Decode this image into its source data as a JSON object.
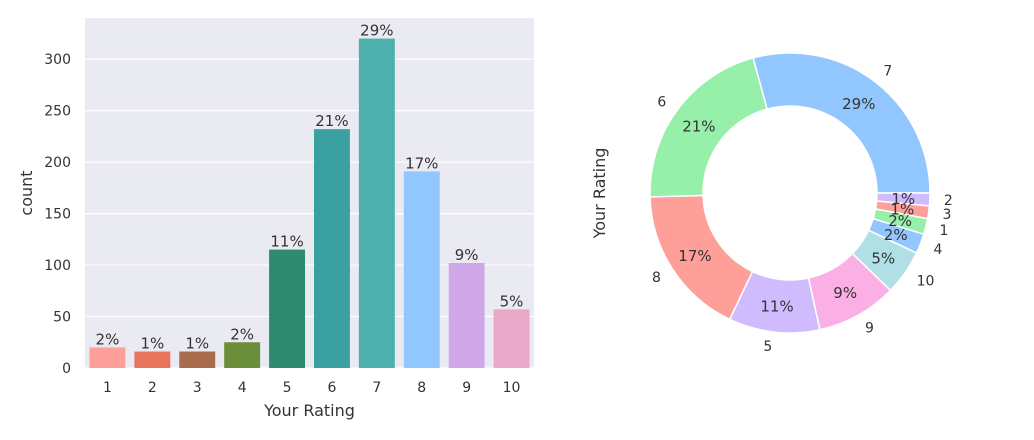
{
  "chart_data": [
    {
      "type": "bar",
      "xlabel": "Your Rating",
      "ylabel": "count",
      "ylim": [
        0,
        340
      ],
      "yticks": [
        0,
        50,
        100,
        150,
        200,
        250,
        300
      ],
      "grid": true,
      "categories": [
        "1",
        "2",
        "3",
        "4",
        "5",
        "6",
        "7",
        "8",
        "9",
        "10"
      ],
      "values": [
        20,
        16,
        16,
        25,
        115,
        232,
        320,
        191,
        102,
        57
      ],
      "data_labels": [
        "2%",
        "1%",
        "1%",
        "2%",
        "11%",
        "21%",
        "29%",
        "17%",
        "9%",
        "5%"
      ],
      "colors": [
        "#ff9f9b",
        "#e8745c",
        "#a86b4c",
        "#6b8e3a",
        "#2e8b6e",
        "#3aa0a0",
        "#4db0ac",
        "#92c6ff",
        "#d0a8e8",
        "#e8a8c8"
      ]
    },
    {
      "type": "pie",
      "donut": true,
      "ylabel": "Your Rating",
      "slices": [
        {
          "label": "7",
          "value": 320,
          "pct_label": "29%",
          "color": "#92c6ff"
        },
        {
          "label": "6",
          "value": 232,
          "pct_label": "21%",
          "color": "#97f0aa"
        },
        {
          "label": "8",
          "value": 191,
          "pct_label": "17%",
          "color": "#ff9f9a"
        },
        {
          "label": "5",
          "value": 115,
          "pct_label": "11%",
          "color": "#d0bbff"
        },
        {
          "label": "9",
          "value": 102,
          "pct_label": "9%",
          "color": "#fab0e4"
        },
        {
          "label": "10",
          "value": 57,
          "pct_label": "5%",
          "color": "#b0e0e6"
        },
        {
          "label": "4",
          "value": 25,
          "pct_label": "2%",
          "color": "#92c6ff"
        },
        {
          "label": "1",
          "value": 20,
          "pct_label": "2%",
          "color": "#97f0aa"
        },
        {
          "label": "3",
          "value": 16,
          "pct_label": "1%",
          "color": "#ff9f9a"
        },
        {
          "label": "2",
          "value": 16,
          "pct_label": "1%",
          "color": "#d0bbff"
        }
      ]
    }
  ]
}
